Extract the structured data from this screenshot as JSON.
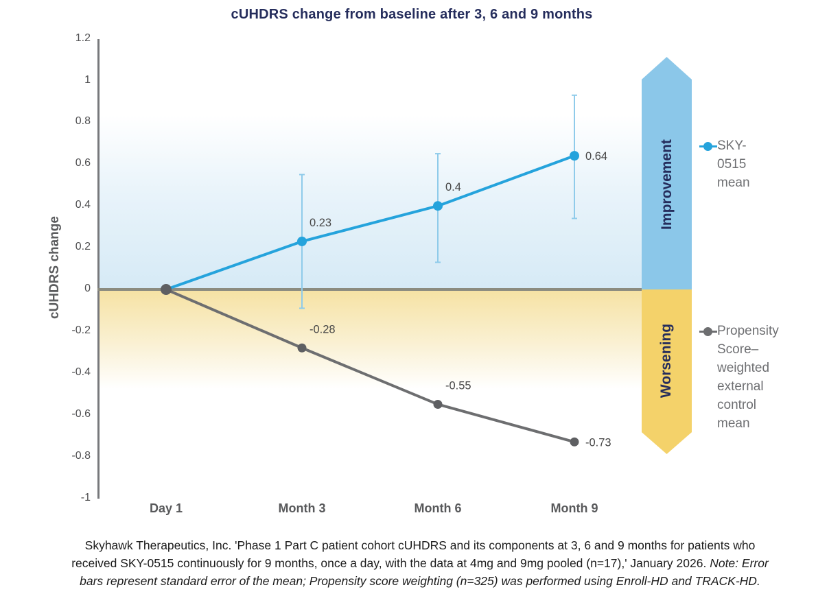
{
  "title": {
    "text": "cUHDRS change from baseline after 3, 6 and 9 months",
    "color": "#252D5C"
  },
  "chart_data": {
    "type": "line",
    "title": "cUHDRS change from baseline after 3, 6 and 9 months",
    "xlabel": "",
    "ylabel": "cUHDRS change",
    "ylim": [
      -1,
      1.2
    ],
    "ytick_values": [
      1.2,
      1,
      0.8,
      0.6,
      0.4,
      0.2,
      0,
      -0.2,
      -0.4,
      -0.6,
      -0.8,
      -1
    ],
    "ytick_labels": [
      "1.2",
      "1",
      "0.8",
      "0.6",
      "0.4",
      "0.2",
      "0",
      "-0.2",
      "-0.4",
      "-0.6",
      "-0.8",
      "-1"
    ],
    "categories": [
      "Day 1",
      "Month 3",
      "Month 6",
      "Month 9"
    ],
    "grid": false,
    "legend_position": "right",
    "series": [
      {
        "name": "SKY-0515 mean",
        "color": "#25A3DC",
        "marker_color": "#25A3DC",
        "error_bar_color": "#8FCBEA",
        "values": [
          0,
          0.23,
          0.4,
          0.64
        ],
        "point_labels": [
          "",
          "0.23",
          "0.4",
          "0.64"
        ],
        "label_side": [
          "none",
          "above",
          "above",
          "right"
        ],
        "error_bars": [
          null,
          {
            "lo": -0.09,
            "hi": 0.55
          },
          {
            "lo": 0.13,
            "hi": 0.65
          },
          {
            "lo": 0.34,
            "hi": 0.93
          }
        ],
        "marker_r": [
          0,
          7,
          7,
          7
        ]
      },
      {
        "name": "Propensity Score–weighted external control mean",
        "color": "#6D6E70",
        "marker_color": "#5E5F62",
        "error_bar_color": "#9B9C9E",
        "values": [
          0,
          -0.28,
          -0.55,
          -0.73
        ],
        "point_labels": [
          "",
          "-0.28",
          "-0.55",
          "-0.73"
        ],
        "label_side": [
          "none",
          "above",
          "above",
          "right"
        ],
        "error_bars": [
          null,
          null,
          null,
          null
        ],
        "marker_r": [
          8,
          6.5,
          6.5,
          6.5
        ]
      }
    ],
    "annotations": [
      "Improvement",
      "Worsening"
    ],
    "shaded_regions": [
      {
        "label": "improvement-zone",
        "from": 0,
        "to": 0.83,
        "color": "#D6EAF6"
      },
      {
        "label": "worsening-zone",
        "from": -0.47,
        "to": 0,
        "color": "#F6E2A3"
      }
    ]
  },
  "arrow": {
    "improvement_label": "Improvement",
    "worsening_label": "Worsening",
    "blue": "#8BC7E9",
    "yellow": "#F4D26A",
    "text_color": "#252D5C"
  },
  "legend": {
    "text_color": "#6E6F72",
    "items": [
      {
        "display": "SKY-0515\nmean",
        "color": "#25A3DC"
      },
      {
        "display": "Propensity\nScore–\nweighted\nexternal\ncontrol\nmean",
        "color": "#6D6E70"
      }
    ]
  },
  "footer": {
    "lines": [
      {
        "pre": "Skyhawk Therapeutics, Inc. 'Phase 1 Part C patient cohort cUHDRS and its components at 3, 6 and 9 months for patients who",
        "italic": ""
      },
      {
        "pre": "received SKY-0515 continuously for 9 months, once a day, with the data at 4mg and 9mg pooled (n=17),' January 2026. ",
        "italic": "Note: Error"
      },
      {
        "pre": "",
        "italic": "bars represent standard error of the mean; Propensity score weighting (n=325) was performed using Enroll-HD and TRACK-HD."
      }
    ]
  }
}
